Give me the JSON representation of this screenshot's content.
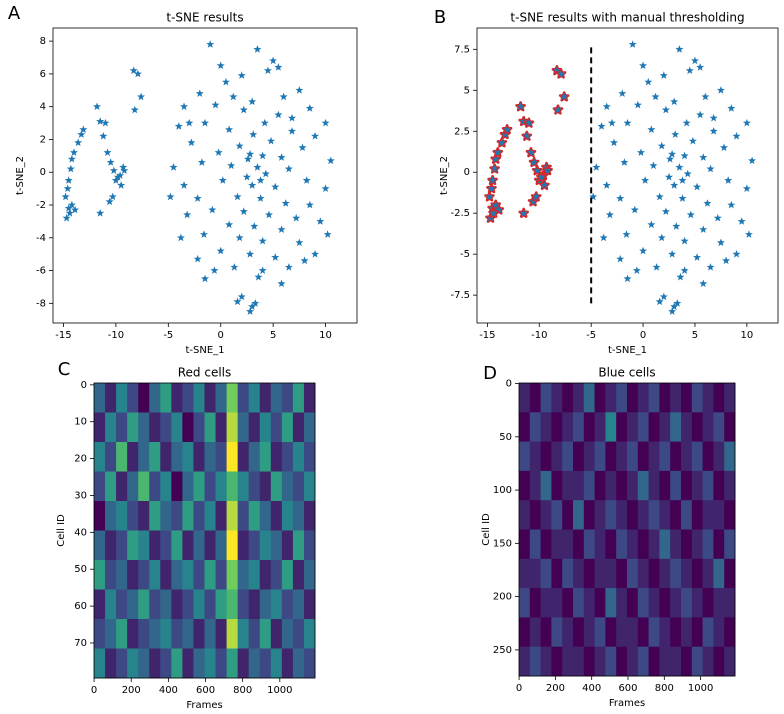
{
  "chart_data": [
    {
      "type": "scatter",
      "panel_label": "A",
      "title": "t-SNE results",
      "xlabel": "t-SNE_1",
      "ylabel": "t-SNE_2",
      "xlim": [
        -16,
        13
      ],
      "ylim": [
        -9.2,
        8.8
      ],
      "xticks": [
        -15,
        -10,
        -5,
        0,
        5,
        10
      ],
      "yticks": [
        -8,
        -6,
        -4,
        -2,
        0,
        2,
        4,
        6,
        8
      ],
      "series": [
        {
          "color": "#1f77b4",
          "x": [
            -14.7,
            -14.5,
            -14.8,
            -14.6,
            -14.5,
            -14.3,
            -14.2,
            -14.0,
            -13.6,
            -13.3,
            -13.1,
            -14.2,
            -13.9,
            -14.4,
            -11.8,
            -11.5,
            -11.0,
            -11.2,
            -10.8,
            -10.5,
            -10.2,
            -10.0,
            -9.6,
            -9.3,
            -9.5,
            -10.6,
            -11.5,
            -8.3,
            -7.9,
            -8.2,
            -7.6,
            -10.3,
            -9.8,
            -9.2,
            -1,
            3.5,
            5,
            5.5,
            2,
            4.5,
            0.5,
            -2,
            7.5,
            6,
            1.2,
            3,
            -3.5,
            -0.5,
            8.5,
            2.2,
            5.5,
            4.2,
            10,
            -4,
            -1.5,
            0.8,
            6.8,
            9,
            3.1,
            -2.8,
            1.8,
            4.8,
            7.8,
            -0.2,
            2.8,
            5.8,
            10.5,
            -4.5,
            -1.8,
            1.0,
            3.5,
            4.3,
            2.5,
            6.5,
            8.2,
            -3.5,
            0.2,
            3.0,
            5.2,
            10,
            -4.8,
            -2.2,
            1.6,
            3.8,
            6.2,
            8.5,
            -0.8,
            2.2,
            4.6,
            7.2,
            -3.2,
            0.8,
            3.2,
            5.8,
            9.5,
            -1.6,
            1.8,
            4.0,
            7.5,
            10.2,
            -3.8,
            0.0,
            2.8,
            5.2,
            8.0,
            -2.2,
            1.3,
            4.0,
            6.5,
            -1.5,
            3.6,
            5.8,
            2.0,
            1.6,
            3.0,
            2.8,
            3.3,
            -0.6,
            9.0,
            6.8,
            0.0,
            -3,
            2.6,
            4.0,
            3.8
          ],
          "y": [
            -2.8,
            -2.2,
            -1.5,
            -1,
            -0.5,
            0.2,
            0.8,
            1.2,
            1.8,
            2.3,
            2.6,
            -2.0,
            -2.3,
            -2.5,
            4.0,
            3.1,
            3.0,
            2.2,
            1.2,
            0.6,
            0.1,
            -0.5,
            -0.2,
            0.3,
            -0.8,
            -1.8,
            -2.5,
            6.2,
            6.0,
            3.8,
            4.6,
            -1.5,
            -0.3,
            0.1,
            7.8,
            7.5,
            6.8,
            6.4,
            5.9,
            6.2,
            5.5,
            4.8,
            5,
            4.6,
            4.6,
            4.3,
            4,
            4.1,
            3.9,
            3.8,
            3.5,
            3.0,
            3,
            2.8,
            3,
            2.6,
            2.5,
            2.2,
            2.3,
            1.8,
            1.6,
            1.9,
            1.5,
            1.2,
            1.1,
            0.9,
            0.7,
            0.3,
            0.6,
            0.4,
            0.3,
            -0.1,
            -0.3,
            0.2,
            -0.5,
            -0.8,
            -0.5,
            -0.8,
            -0.9,
            -1.0,
            -1.5,
            -1.6,
            -1.5,
            -1.6,
            -1.9,
            -2.0,
            -2.3,
            -2.4,
            -2.6,
            -2.8,
            -2.6,
            -3.2,
            -3.3,
            -3.5,
            -3.0,
            -3.8,
            -4.0,
            -4.2,
            -4.3,
            -3.8,
            -4.0,
            -4.8,
            -5.0,
            -5.2,
            -5.4,
            -5.3,
            -5.8,
            -6.0,
            -5.8,
            -6.5,
            -6.4,
            -6.8,
            -7.6,
            -7.9,
            -8.2,
            -8.5,
            -8.0,
            -6.0,
            -5.0,
            3.3,
            6.5,
            3,
            0.8,
            1.0,
            -0.5
          ]
        }
      ]
    },
    {
      "type": "scatter",
      "panel_label": "B",
      "title": "t-SNE results with manual thresholding",
      "xlabel": "t-SNE_1",
      "ylabel": "t-SNE_2",
      "xlim": [
        -16,
        13
      ],
      "ylim": [
        -9.2,
        8.8
      ],
      "xticks": [
        -15,
        -10,
        -5,
        0,
        5,
        10
      ],
      "yticks": [
        -7.5,
        -5.0,
        -2.5,
        0.0,
        2.5,
        5.0,
        7.5
      ],
      "threshold": {
        "x": -5,
        "y": [
          -8,
          7.8
        ],
        "color": "#000000"
      },
      "series": [
        {
          "color": "#1f77b4",
          "edgecolor": "#d62728",
          "x": [
            -14.7,
            -14.5,
            -14.8,
            -14.6,
            -14.5,
            -14.3,
            -14.2,
            -14.0,
            -13.6,
            -13.3,
            -13.1,
            -14.2,
            -13.9,
            -14.4,
            -11.8,
            -11.5,
            -11.0,
            -11.2,
            -10.8,
            -10.5,
            -10.2,
            -10.0,
            -9.6,
            -9.3,
            -9.5,
            -10.6,
            -11.5,
            -8.3,
            -7.9,
            -8.2,
            -7.6,
            -10.3,
            -9.8,
            -9.2
          ],
          "y": [
            -2.8,
            -2.2,
            -1.5,
            -1,
            -0.5,
            0.2,
            0.8,
            1.2,
            1.8,
            2.3,
            2.6,
            -2.0,
            -2.3,
            -2.5,
            4.0,
            3.1,
            3.0,
            2.2,
            1.2,
            0.6,
            0.1,
            -0.5,
            -0.2,
            0.3,
            -0.8,
            -1.8,
            -2.5,
            6.2,
            6.0,
            3.8,
            4.6,
            -1.5,
            -0.3,
            0.1
          ]
        },
        {
          "color": "#1f77b4",
          "x": [
            -1,
            3.5,
            5,
            5.5,
            2,
            4.5,
            0.5,
            -2,
            7.5,
            6,
            1.2,
            3,
            -3.5,
            -0.5,
            8.5,
            2.2,
            5.5,
            4.2,
            10,
            -4,
            -1.5,
            0.8,
            6.8,
            9,
            3.1,
            -2.8,
            1.8,
            4.8,
            7.8,
            -0.2,
            2.8,
            5.8,
            10.5,
            -4.5,
            -1.8,
            1.0,
            3.5,
            4.3,
            2.5,
            6.5,
            8.2,
            -3.5,
            0.2,
            3.0,
            5.2,
            10,
            -4.8,
            -2.2,
            1.6,
            3.8,
            6.2,
            8.5,
            -0.8,
            2.2,
            4.6,
            7.2,
            -3.2,
            0.8,
            3.2,
            5.8,
            9.5,
            -1.6,
            1.8,
            4.0,
            7.5,
            10.2,
            -3.8,
            0.0,
            2.8,
            5.2,
            8.0,
            -2.2,
            1.3,
            4.0,
            6.5,
            -1.5,
            3.6,
            5.8,
            2.0,
            1.6,
            3.0,
            2.8,
            3.3,
            -0.6,
            9.0,
            6.8,
            0.0,
            -3,
            2.6,
            4.0,
            3.8
          ],
          "y": [
            7.8,
            7.5,
            6.8,
            6.4,
            5.9,
            6.2,
            5.5,
            4.8,
            5,
            4.6,
            4.6,
            4.3,
            4,
            4.1,
            3.9,
            3.8,
            3.5,
            3.0,
            3,
            2.8,
            3,
            2.6,
            2.5,
            2.2,
            2.3,
            1.8,
            1.6,
            1.9,
            1.5,
            1.2,
            1.1,
            0.9,
            0.7,
            0.3,
            0.6,
            0.4,
            0.3,
            -0.1,
            -0.3,
            0.2,
            -0.5,
            -0.8,
            -0.5,
            -0.8,
            -0.9,
            -1.0,
            -1.5,
            -1.6,
            -1.5,
            -1.6,
            -1.9,
            -2.0,
            -2.3,
            -2.4,
            -2.6,
            -2.8,
            -2.6,
            -3.2,
            -3.3,
            -3.5,
            -3.0,
            -3.8,
            -4.0,
            -4.2,
            -4.3,
            -3.8,
            -4.0,
            -4.8,
            -5.0,
            -5.2,
            -5.4,
            -5.3,
            -5.8,
            -6.0,
            -5.8,
            -6.5,
            -6.4,
            -6.8,
            -7.6,
            -7.9,
            -8.2,
            -8.5,
            -8.0,
            -6.0,
            -5.0,
            3.3,
            6.5,
            3,
            0.8,
            1.0,
            -0.5
          ]
        }
      ]
    },
    {
      "type": "heatmap",
      "panel_label": "C",
      "title": "Red cells",
      "xlabel": "Frames",
      "ylabel": "Cell ID",
      "colormap": "viridis",
      "clim": [
        0,
        9
      ],
      "xlim": [
        -0.5,
        1189.5
      ],
      "ylim": [
        79.5,
        -0.5
      ],
      "xticks": [
        0,
        200,
        400,
        600,
        800,
        1000
      ],
      "yticks": [
        0,
        10,
        20,
        30,
        40,
        50,
        60,
        70
      ],
      "values": [
        [
          3,
          1,
          4,
          2,
          0,
          3,
          5,
          1,
          2,
          4,
          1,
          3,
          7,
          2,
          4,
          1,
          3,
          2,
          5,
          1
        ],
        [
          1,
          4,
          2,
          5,
          3,
          1,
          2,
          4,
          0,
          2,
          5,
          1,
          8,
          3,
          1,
          4,
          2,
          5,
          1,
          3
        ],
        [
          4,
          2,
          6,
          1,
          3,
          5,
          1,
          3,
          4,
          1,
          3,
          2,
          9,
          1,
          3,
          5,
          1,
          2,
          4,
          2
        ],
        [
          2,
          5,
          1,
          3,
          6,
          2,
          4,
          0,
          3,
          5,
          2,
          4,
          6,
          4,
          2,
          1,
          5,
          3,
          2,
          4
        ],
        [
          0,
          3,
          4,
          2,
          1,
          5,
          3,
          2,
          5,
          2,
          4,
          1,
          8,
          2,
          5,
          3,
          1,
          4,
          3,
          1
        ],
        [
          3,
          1,
          2,
          5,
          4,
          1,
          2,
          5,
          1,
          3,
          1,
          3,
          9,
          1,
          2,
          4,
          3,
          1,
          5,
          2
        ],
        [
          5,
          2,
          3,
          1,
          2,
          4,
          1,
          3,
          4,
          2,
          5,
          2,
          7,
          3,
          4,
          1,
          2,
          5,
          1,
          3
        ],
        [
          1,
          4,
          2,
          3,
          5,
          2,
          3,
          1,
          2,
          4,
          2,
          5,
          6,
          2,
          1,
          3,
          4,
          2,
          3,
          1
        ],
        [
          2,
          3,
          5,
          1,
          2,
          3,
          4,
          2,
          3,
          1,
          3,
          1,
          8,
          4,
          2,
          5,
          1,
          3,
          2,
          4
        ],
        [
          4,
          1,
          2,
          4,
          3,
          1,
          2,
          5,
          1,
          3,
          4,
          2,
          5,
          1,
          3,
          2,
          4,
          1,
          3,
          2
        ]
      ]
    },
    {
      "type": "heatmap",
      "panel_label": "D",
      "title": "Blue cells",
      "xlabel": "Frames",
      "ylabel": "Cell ID",
      "colormap": "viridis",
      "clim": [
        0,
        9
      ],
      "xlim": [
        -0.5,
        1189.5
      ],
      "ylim": [
        274.5,
        -0.5
      ],
      "xticks": [
        0,
        200,
        400,
        600,
        800,
        1000
      ],
      "yticks": [
        0,
        50,
        100,
        150,
        200,
        250
      ],
      "values": [
        [
          1,
          0,
          2,
          1,
          0,
          1,
          3,
          0,
          1,
          2,
          0,
          1,
          2,
          0,
          1,
          0,
          2,
          1,
          0,
          1
        ],
        [
          0,
          2,
          1,
          0,
          1,
          2,
          0,
          1,
          4,
          0,
          1,
          2,
          0,
          1,
          3,
          1,
          0,
          1,
          2,
          0
        ],
        [
          2,
          1,
          0,
          1,
          2,
          0,
          1,
          2,
          0,
          1,
          2,
          0,
          1,
          2,
          0,
          1,
          2,
          0,
          1,
          3
        ],
        [
          0,
          1,
          3,
          0,
          1,
          1,
          2,
          0,
          1,
          0,
          1,
          3,
          1,
          0,
          2,
          0,
          1,
          2,
          0,
          1
        ],
        [
          1,
          0,
          1,
          2,
          0,
          3,
          0,
          1,
          2,
          1,
          0,
          1,
          2,
          1,
          0,
          2,
          0,
          1,
          1,
          0
        ],
        [
          0,
          2,
          0,
          1,
          1,
          0,
          2,
          1,
          0,
          2,
          1,
          0,
          1,
          3,
          1,
          0,
          1,
          2,
          0,
          2
        ],
        [
          1,
          1,
          2,
          0,
          2,
          1,
          0,
          1,
          1,
          0,
          2,
          1,
          0,
          1,
          2,
          1,
          0,
          1,
          3,
          0
        ],
        [
          2,
          0,
          1,
          1,
          0,
          2,
          1,
          0,
          3,
          1,
          0,
          2,
          1,
          0,
          1,
          2,
          1,
          0,
          1,
          1
        ],
        [
          0,
          1,
          0,
          2,
          1,
          0,
          1,
          2,
          0,
          1,
          1,
          0,
          2,
          1,
          0,
          1,
          0,
          2,
          1,
          0
        ],
        [
          1,
          2,
          1,
          0,
          1,
          1,
          0,
          1,
          2,
          0,
          1,
          2,
          0,
          1,
          1,
          0,
          2,
          1,
          0,
          1
        ]
      ]
    }
  ]
}
